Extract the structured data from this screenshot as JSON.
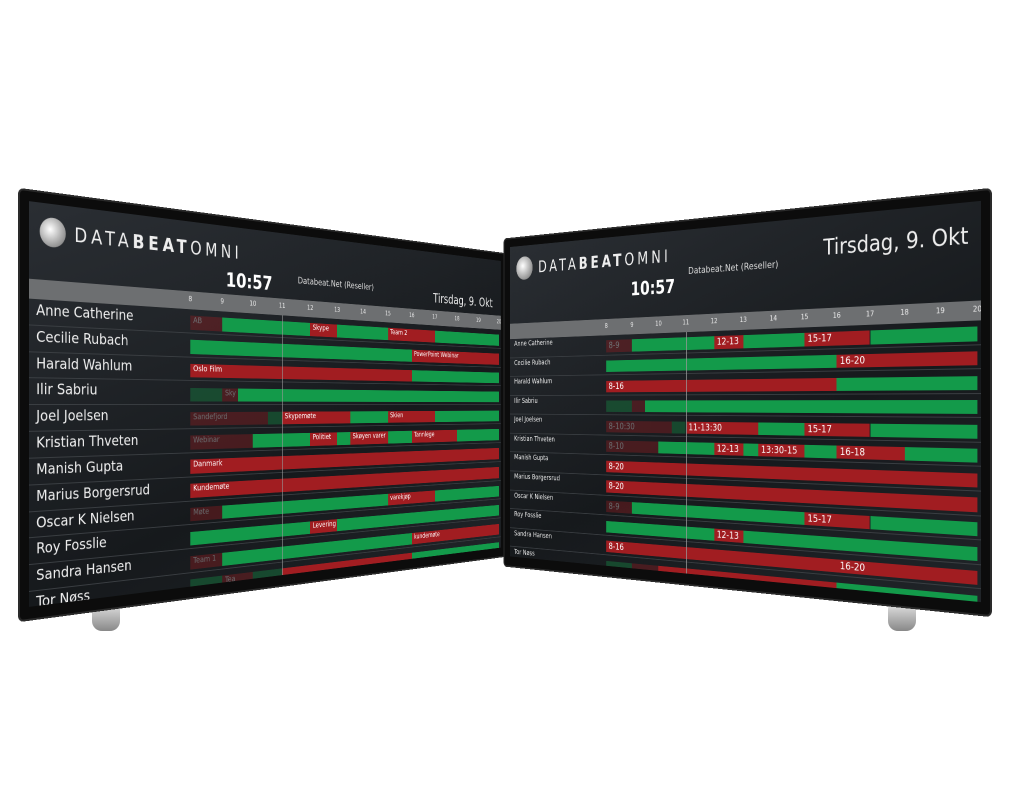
{
  "colors": {
    "free": "#139a4a",
    "busy": "#a11d21",
    "axis": "#6d6f71",
    "screen": "#1e2226"
  },
  "hours": [
    8,
    9,
    10,
    11,
    12,
    13,
    14,
    15,
    16,
    17,
    18,
    19,
    20
  ],
  "now_hour": 11,
  "screens": [
    {
      "logo": {
        "light": "DATA",
        "bold": "BEAT",
        "light2": "OMNI"
      },
      "clock": "10:57",
      "reseller": "Databeat.Net (Reseller)",
      "date": "Tirsdag, 9. Okt",
      "rows": [
        {
          "name": "Anne Catherine",
          "segments": [
            [
              8,
              9,
              "busy",
              "AB"
            ],
            [
              9,
              12,
              "free",
              ""
            ],
            [
              12,
              13,
              "busy",
              "Skype"
            ],
            [
              13,
              15,
              "free",
              ""
            ],
            [
              15,
              17,
              "busy",
              "Team 2"
            ],
            [
              17,
              20,
              "free",
              ""
            ]
          ]
        },
        {
          "name": "Cecilie Rubach",
          "segments": [
            [
              8,
              16,
              "free",
              ""
            ],
            [
              16,
              20,
              "busy",
              "PowerPoint Webinar"
            ]
          ]
        },
        {
          "name": "Harald Wahlum",
          "segments": [
            [
              8,
              16,
              "busy",
              "Oslo Film"
            ],
            [
              16,
              20,
              "free",
              ""
            ]
          ]
        },
        {
          "name": "Ilir Sabriu",
          "segments": [
            [
              8,
              9,
              "free",
              ""
            ],
            [
              9,
              9.5,
              "busy",
              "Sky"
            ],
            [
              9.5,
              20,
              "free",
              ""
            ]
          ]
        },
        {
          "name": "Joel Joelsen",
          "segments": [
            [
              8,
              10.5,
              "busy",
              "Sandefjord"
            ],
            [
              10.5,
              11,
              "free",
              ""
            ],
            [
              11,
              13.5,
              "busy",
              "Skypemøte"
            ],
            [
              13.5,
              15,
              "free",
              ""
            ],
            [
              15,
              17,
              "busy",
              "Skien"
            ],
            [
              17,
              20,
              "free",
              ""
            ]
          ]
        },
        {
          "name": "Kristian Thveten",
          "segments": [
            [
              8,
              10,
              "busy",
              "Webinar"
            ],
            [
              10,
              12,
              "free",
              ""
            ],
            [
              12,
              13,
              "busy",
              "Politiet"
            ],
            [
              13,
              13.5,
              "free",
              ""
            ],
            [
              13.5,
              15,
              "busy",
              "Skøyen varer"
            ],
            [
              15,
              16,
              "free",
              ""
            ],
            [
              16,
              18,
              "busy",
              "Tannlege"
            ],
            [
              18,
              20,
              "free",
              ""
            ]
          ]
        },
        {
          "name": "Manish Gupta",
          "segments": [
            [
              8,
              20,
              "busy",
              "Danmark"
            ]
          ]
        },
        {
          "name": "Marius Borgersrud",
          "segments": [
            [
              8,
              20,
              "busy",
              "Kundemøte"
            ]
          ]
        },
        {
          "name": "Oscar K Nielsen",
          "segments": [
            [
              8,
              9,
              "busy",
              "Møte"
            ],
            [
              9,
              15,
              "free",
              ""
            ],
            [
              15,
              17,
              "busy",
              "varekjøp"
            ],
            [
              17,
              20,
              "free",
              ""
            ]
          ]
        },
        {
          "name": "Roy Fosslie",
          "segments": [
            [
              8,
              12,
              "free",
              ""
            ],
            [
              12,
              13,
              "busy",
              "Levering"
            ],
            [
              13,
              20,
              "free",
              ""
            ]
          ]
        },
        {
          "name": "Sandra Hansen",
          "segments": [
            [
              8,
              9,
              "busy",
              "Team 1"
            ],
            [
              9,
              16,
              "free",
              ""
            ],
            [
              16,
              20,
              "busy",
              "kundemøte"
            ]
          ]
        },
        {
          "name": "Tor Nøss",
          "segments": [
            [
              8,
              9,
              "free",
              ""
            ],
            [
              9,
              10,
              "busy",
              "Tea"
            ],
            [
              10,
              11,
              "free",
              ""
            ],
            [
              11,
              16,
              "busy",
              ""
            ],
            [
              16,
              20,
              "free",
              ""
            ]
          ]
        }
      ]
    },
    {
      "logo": {
        "light": "DATA",
        "bold": "BEAT",
        "light2": "OMNI"
      },
      "clock": "10:57",
      "reseller": "Databeat.Net (Reseller)",
      "date": "Tirsdag, 9. Okt",
      "rows": [
        {
          "name": "Anne Catherine",
          "segments": [
            [
              8,
              9,
              "busy",
              "8-9"
            ],
            [
              9,
              12,
              "free",
              ""
            ],
            [
              12,
              13,
              "busy",
              "12-13"
            ],
            [
              13,
              15,
              "free",
              ""
            ],
            [
              15,
              17,
              "busy",
              "15-17"
            ],
            [
              17,
              20,
              "free",
              ""
            ]
          ]
        },
        {
          "name": "Cecilie Rubach",
          "segments": [
            [
              8,
              16,
              "free",
              ""
            ],
            [
              16,
              20,
              "busy",
              "16-20"
            ]
          ]
        },
        {
          "name": "Harald Wahlum",
          "segments": [
            [
              8,
              16,
              "busy",
              "8-16"
            ],
            [
              16,
              20,
              "free",
              ""
            ]
          ]
        },
        {
          "name": "Ilir Sabriu",
          "segments": [
            [
              8,
              9,
              "free",
              ""
            ],
            [
              9,
              9.5,
              "busy",
              ""
            ],
            [
              9.5,
              20,
              "free",
              ""
            ]
          ]
        },
        {
          "name": "Joel Joelsen",
          "segments": [
            [
              8,
              10.5,
              "busy",
              "8-10:30"
            ],
            [
              10.5,
              11,
              "free",
              ""
            ],
            [
              11,
              13.5,
              "busy",
              "11-13:30"
            ],
            [
              13.5,
              15,
              "free",
              ""
            ],
            [
              15,
              17,
              "busy",
              "15-17"
            ],
            [
              17,
              20,
              "free",
              ""
            ]
          ]
        },
        {
          "name": "Kristian Thveten",
          "segments": [
            [
              8,
              10,
              "busy",
              "8-10"
            ],
            [
              10,
              12,
              "free",
              ""
            ],
            [
              12,
              13,
              "busy",
              "12-13"
            ],
            [
              13,
              13.5,
              "free",
              ""
            ],
            [
              13.5,
              15,
              "busy",
              "13:30-15"
            ],
            [
              15,
              16,
              "free",
              ""
            ],
            [
              16,
              18,
              "busy",
              "16-18"
            ],
            [
              18,
              20,
              "free",
              ""
            ]
          ]
        },
        {
          "name": "Manish Gupta",
          "segments": [
            [
              8,
              20,
              "busy",
              "8-20"
            ]
          ]
        },
        {
          "name": "Marius Borgersrud",
          "segments": [
            [
              8,
              20,
              "busy",
              "8-20"
            ]
          ]
        },
        {
          "name": "Oscar K Nielsen",
          "segments": [
            [
              8,
              9,
              "busy",
              "8-9"
            ],
            [
              9,
              15,
              "free",
              ""
            ],
            [
              15,
              17,
              "busy",
              "15-17"
            ],
            [
              17,
              20,
              "free",
              ""
            ]
          ]
        },
        {
          "name": "Roy Fosslie",
          "segments": [
            [
              8,
              12,
              "free",
              ""
            ],
            [
              12,
              13,
              "busy",
              "12-13"
            ],
            [
              13,
              20,
              "free",
              ""
            ]
          ]
        },
        {
          "name": "Sandra Hansen",
          "segments": [
            [
              8,
              16,
              "busy",
              "8-16"
            ],
            [
              16,
              20,
              "busy",
              "16-20"
            ]
          ]
        },
        {
          "name": "Tor Nøss",
          "segments": [
            [
              8,
              9,
              "free",
              ""
            ],
            [
              9,
              10,
              "busy",
              ""
            ],
            [
              10,
              16,
              "busy",
              ""
            ],
            [
              16,
              20,
              "free",
              ""
            ]
          ]
        }
      ]
    }
  ]
}
